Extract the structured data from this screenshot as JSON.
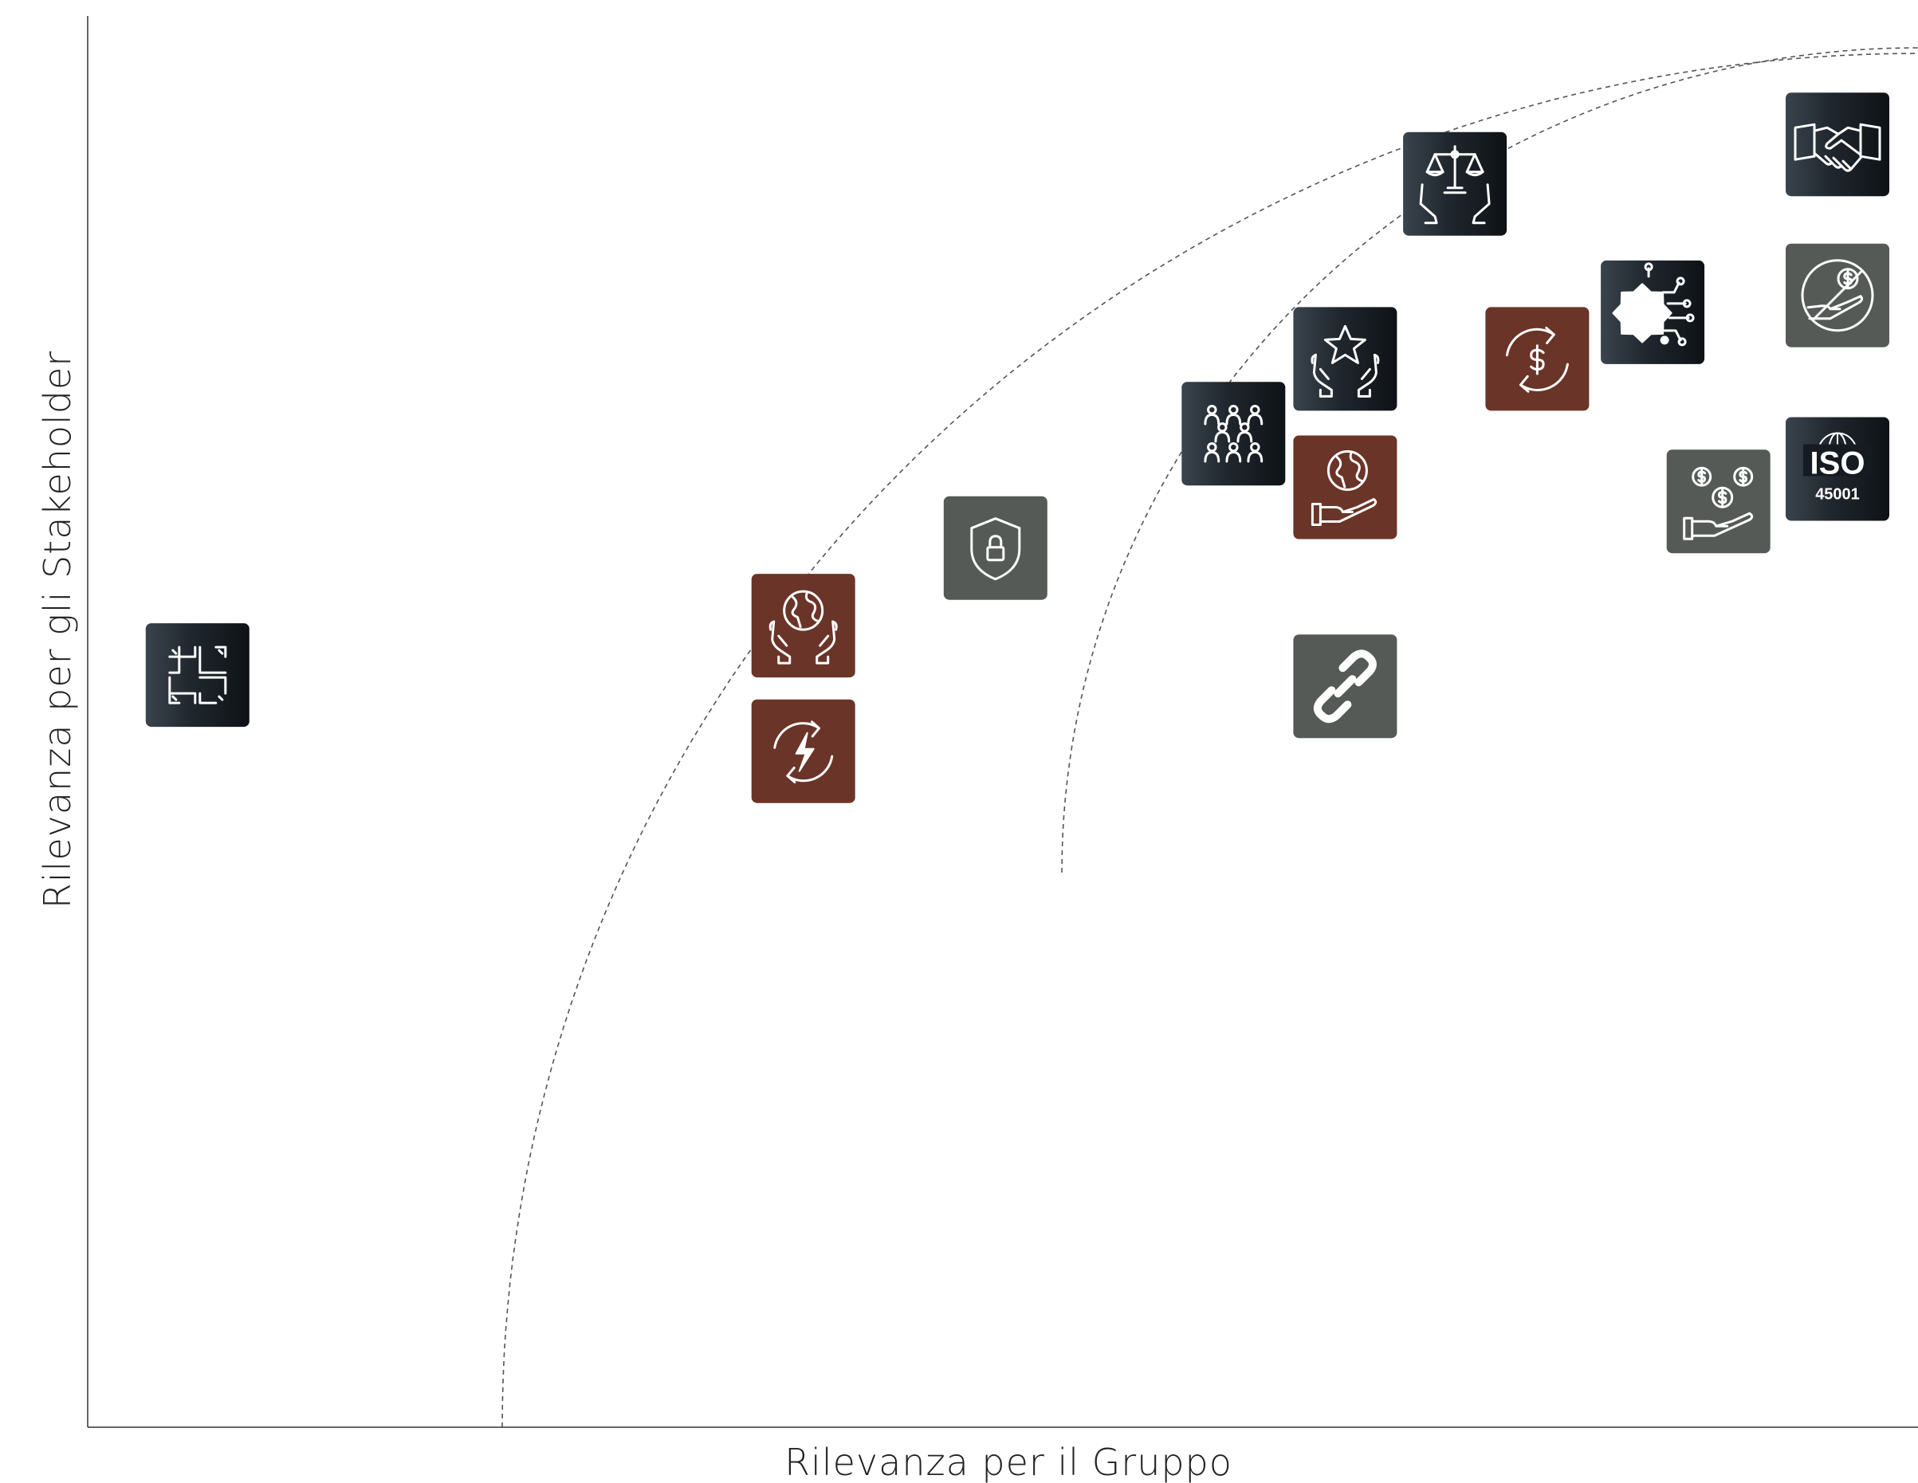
{
  "chart_data": {
    "type": "scatter",
    "title": "",
    "xlabel": "Rilevanza per il Gruppo",
    "ylabel": "Rilevanza per gli Stakeholder",
    "xlim": [
      0,
      100
    ],
    "ylim": [
      0,
      100
    ],
    "grid": false,
    "threshold_curves": [
      {
        "name": "",
        "style": "dashed",
        "x_intercept": 100,
        "y_at_left": 97
      },
      {
        "name": "",
        "style": "dashed",
        "x_intercept": 100,
        "y_at_left": 97
      }
    ],
    "points": [
      {
        "icon": "hands-collaboration-icon",
        "color": "#1d232a",
        "x": 6.0,
        "y": 53.3
      },
      {
        "icon": "globe-hands-icon",
        "color": "#6b3428",
        "x": 39.1,
        "y": 56.8
      },
      {
        "icon": "energy-cycle-icon",
        "color": "#6b3428",
        "x": 39.1,
        "y": 47.9
      },
      {
        "icon": "shield-lock-icon",
        "color": "#565a57",
        "x": 49.6,
        "y": 62.3
      },
      {
        "icon": "people-group-icon",
        "color": "#1d232a",
        "x": 62.6,
        "y": 70.4
      },
      {
        "icon": "star-hands-icon",
        "color": "#1d232a",
        "x": 68.7,
        "y": 75.7
      },
      {
        "icon": "globe-hand-icon",
        "color": "#6b3428",
        "x": 68.7,
        "y": 66.6
      },
      {
        "icon": "chain-link-icon",
        "color": "#565a57",
        "x": 68.7,
        "y": 52.5
      },
      {
        "icon": "scales-hands-icon",
        "color": "#1d232a",
        "x": 74.7,
        "y": 88.1
      },
      {
        "icon": "dollar-cycle-icon",
        "color": "#6b3428",
        "x": 79.2,
        "y": 75.7
      },
      {
        "icon": "gear-circuit-icon",
        "color": "#1d232a",
        "x": 85.5,
        "y": 79.0
      },
      {
        "icon": "money-hand-icon",
        "color": "#565a57",
        "x": 89.1,
        "y": 65.6
      },
      {
        "icon": "handshake-icon",
        "color": "#1d232a",
        "x": 95.6,
        "y": 90.9
      },
      {
        "icon": "no-bribery-icon",
        "color": "#565a57",
        "x": 95.6,
        "y": 80.2
      },
      {
        "icon": "iso-45001-icon",
        "color": "#1d232a",
        "x": 95.6,
        "y": 67.9,
        "label_main": "ISO",
        "label_sub": "45001"
      }
    ]
  }
}
